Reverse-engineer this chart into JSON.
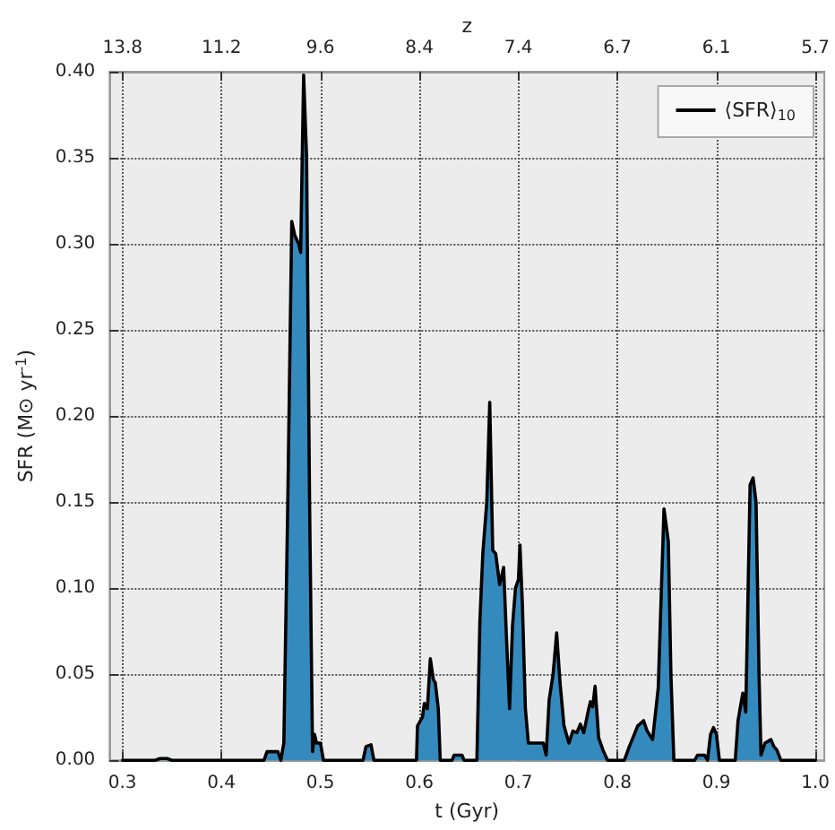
{
  "chart_data": {
    "type": "area",
    "xlabel": "t (Gyr)",
    "ylabel": "SFR (M⊙ yr$^{-1}$)",
    "x2label": "z",
    "xlim": [
      0.287,
      1.009
    ],
    "ylim": [
      0,
      0.4
    ],
    "xticks": [
      {
        "value": 0.3,
        "label": "0.3"
      },
      {
        "value": 0.4,
        "label": "0.4"
      },
      {
        "value": 0.5,
        "label": "0.5"
      },
      {
        "value": 0.6,
        "label": "0.6"
      },
      {
        "value": 0.7,
        "label": "0.7"
      },
      {
        "value": 0.8,
        "label": "0.8"
      },
      {
        "value": 0.9,
        "label": "0.9"
      },
      {
        "value": 1.0,
        "label": "1.0"
      }
    ],
    "annotations": [
      "13.8",
      "11.2",
      "9.6",
      "8.4",
      "7.4",
      "6.7",
      "6.1",
      "5.7"
    ],
    "yticks": [
      {
        "value": 0,
        "label": "0.00"
      },
      {
        "value": 0.05,
        "label": "0.05"
      },
      {
        "value": 0.1,
        "label": "0.10"
      },
      {
        "value": 0.15,
        "label": "0.15"
      },
      {
        "value": 0.2,
        "label": "0.20"
      },
      {
        "value": 0.25,
        "label": "0.25"
      },
      {
        "value": 0.3,
        "label": "0.30"
      },
      {
        "value": 0.35,
        "label": "0.35"
      },
      {
        "value": 0.4,
        "label": "0.40"
      }
    ],
    "grid": true,
    "legend": "top right",
    "line_style": "solid",
    "series": [
      {
        "name": "⟨SFR⟩$_{10}$",
        "color": "#348abd",
        "x": [
          0.3,
          0.333,
          0.338,
          0.345,
          0.35,
          0.443,
          0.446,
          0.457,
          0.46,
          0.463,
          0.467,
          0.471,
          0.474,
          0.478,
          0.48,
          0.481,
          0.483,
          0.486,
          0.489,
          0.492,
          0.494,
          0.496,
          0.5,
          0.503,
          0.543,
          0.546,
          0.551,
          0.554,
          0.597,
          0.598,
          0.603,
          0.605,
          0.608,
          0.611,
          0.614,
          0.616,
          0.619,
          0.621,
          0.633,
          0.635,
          0.643,
          0.645,
          0.658,
          0.661,
          0.664,
          0.668,
          0.671,
          0.674,
          0.677,
          0.681,
          0.685,
          0.688,
          0.691,
          0.694,
          0.697,
          0.7,
          0.7015,
          0.704,
          0.707,
          0.71,
          0.725,
          0.728,
          0.731,
          0.735,
          0.7386,
          0.742,
          0.746,
          0.751,
          0.755,
          0.759,
          0.7625,
          0.766,
          0.771,
          0.7727,
          0.775,
          0.7774,
          0.781,
          0.786,
          0.79,
          0.807,
          0.812,
          0.817,
          0.8205,
          0.8264,
          0.83,
          0.8355,
          0.8412,
          0.847,
          0.8514,
          0.854,
          0.857,
          0.878,
          0.881,
          0.888,
          0.891,
          0.894,
          0.897,
          0.9,
          0.903,
          0.919,
          0.9218,
          0.9266,
          0.9296,
          0.932,
          0.934,
          0.937,
          0.94,
          0.943,
          0.945,
          0.949,
          0.952,
          0.955,
          0.958,
          0.961,
          0.965,
          1.0
        ],
        "values": [
          0,
          0,
          0.001,
          0.001,
          0,
          0,
          0.005,
          0.005,
          0,
          0.01,
          0.15,
          0.313,
          0.305,
          0.3,
          0.295,
          0.33,
          0.398,
          0.35,
          0.15,
          0.005,
          0.015,
          0.01,
          0.01,
          0,
          0,
          0.008,
          0.009,
          0,
          0,
          0.02,
          0.025,
          0.033,
          0.03,
          0.059,
          0.047,
          0.045,
          0.03,
          0,
          0,
          0.003,
          0.003,
          0,
          0,
          0.08,
          0.12,
          0.15,
          0.208,
          0.122,
          0.12,
          0.102,
          0.112,
          0.07,
          0.03,
          0.078,
          0.1,
          0.105,
          0.125,
          0.09,
          0.03,
          0.01,
          0.01,
          0.003,
          0.035,
          0.05,
          0.074,
          0.045,
          0.02,
          0.01,
          0.017,
          0.016,
          0.021,
          0.016,
          0.03,
          0.034,
          0.031,
          0.043,
          0.013,
          0.005,
          0,
          0,
          0.008,
          0.015,
          0.02,
          0.023,
          0.017,
          0.012,
          0.042,
          0.146,
          0.127,
          0.05,
          0,
          0,
          0.003,
          0.003,
          0,
          0.015,
          0.019,
          0.015,
          0,
          0,
          0.023,
          0.039,
          0.028,
          0.1,
          0.16,
          0.164,
          0.15,
          0.05,
          0.003,
          0.01,
          0.011,
          0.012,
          0.008,
          0.006,
          0,
          0
        ]
      }
    ]
  }
}
